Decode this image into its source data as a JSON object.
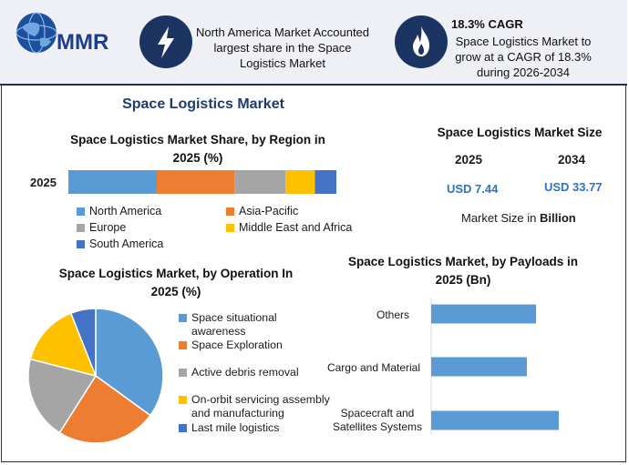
{
  "brand": {
    "logo_text": "MMR"
  },
  "highlights": [
    {
      "icon": "lightning-icon",
      "text": "North America Market Accounted largest share in the Space Logistics Market"
    },
    {
      "icon": "flame-icon",
      "title": "18.3% CAGR",
      "text": "Space Logistics Market to grow at a CAGR of 18.3% during 2026-2034"
    }
  ],
  "main_title": "Space Logistics Market",
  "market_size": {
    "title": "Space Logistics Market Size",
    "years": [
      "2025",
      "2034"
    ],
    "values": [
      "USD 7.44",
      "USD 33.77"
    ],
    "unit_prefix": "Market Size in ",
    "unit_strong": "Billion"
  },
  "colors": {
    "blue": "#5b9bd5",
    "orange": "#ed7d31",
    "gray": "#a5a5a5",
    "yellow": "#ffc000",
    "darkblue": "#4472c4"
  },
  "chart_data": [
    {
      "type": "bar",
      "title": "Space Logistics Market Share, by Region in 2025 (%)",
      "categories": [
        "2025"
      ],
      "stacked": true,
      "series": [
        {
          "name": "North America",
          "values": [
            33
          ]
        },
        {
          "name": "Asia-Pacific",
          "values": [
            29
          ]
        },
        {
          "name": "Europe",
          "values": [
            19
          ]
        },
        {
          "name": "Middle East and Africa",
          "values": [
            11
          ]
        },
        {
          "name": "South America",
          "values": [
            8
          ]
        }
      ]
    },
    {
      "type": "pie",
      "title": "Space Logistics Market, by Operation In 2025 (%)",
      "slices": [
        {
          "name": "Space situational awareness",
          "value": 35
        },
        {
          "name": "Space Exploration",
          "value": 24
        },
        {
          "name": "Active debris removal",
          "value": 20
        },
        {
          "name": "On-orbit servicing assembly and manufacturing",
          "value": 15
        },
        {
          "name": "Last mile logistics",
          "value": 6
        }
      ]
    },
    {
      "type": "bar",
      "orientation": "horizontal",
      "title": "Space Logistics Market, by Payloads in 2025 (Bn)",
      "categories": [
        "Others",
        "Cargo and Material",
        "Spacecraft and Satellites Systems"
      ],
      "values": [
        2.3,
        2.1,
        2.8
      ]
    }
  ]
}
